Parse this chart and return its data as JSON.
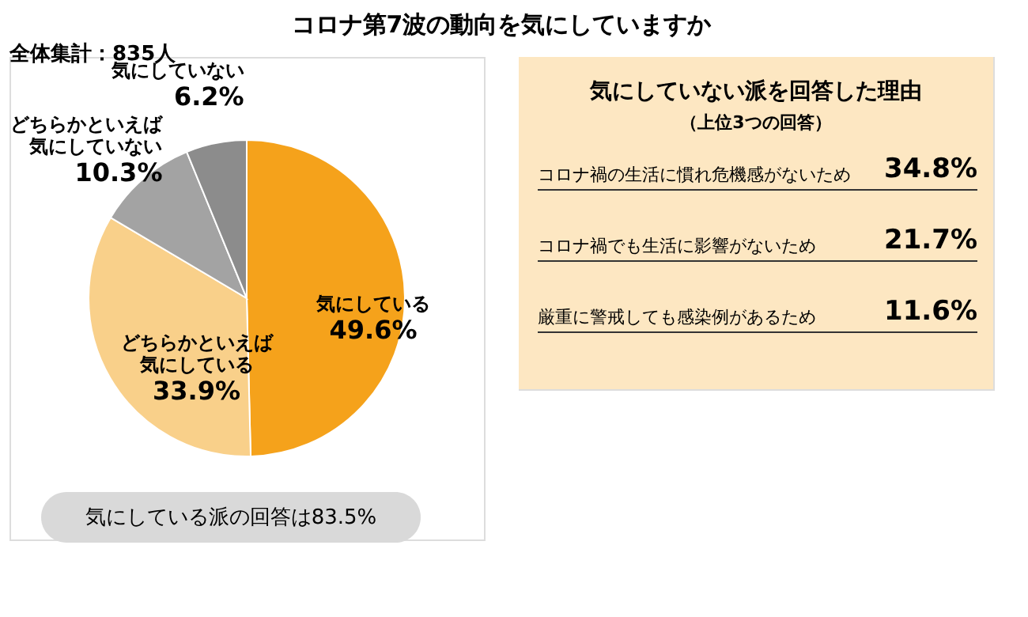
{
  "chart_data": [
    {
      "type": "pie",
      "title": "コロナ第7波の動向を気にしていますか",
      "subtitle": "全体集計：835人",
      "categories": [
        "気にしている",
        "どちらかといえば気にしている",
        "どちらかといえば気にしていない",
        "気にしていない"
      ],
      "values": [
        49.6,
        33.9,
        10.3,
        6.2
      ],
      "value_labels": [
        "49.6%",
        "33.9%",
        "10.3%",
        "6.2%"
      ],
      "colors": [
        "#f5a21b",
        "#f9d08a",
        "#a3a3a3",
        "#8c8c8c"
      ],
      "annotations": [
        "気にしている派の回答は83.5%"
      ]
    },
    {
      "type": "other",
      "title": "気にしていない派を回答した理由",
      "subtitle": "（上位3つの回答）",
      "categories": [
        "コロナ禍の生活に慣れ危機感がないため",
        "コロナ禍でも生活に影響がないため",
        "厳重に警戒しても感染例があるため"
      ],
      "value_labels": [
        "34.8%",
        "21.7%",
        "11.6%"
      ]
    }
  ]
}
